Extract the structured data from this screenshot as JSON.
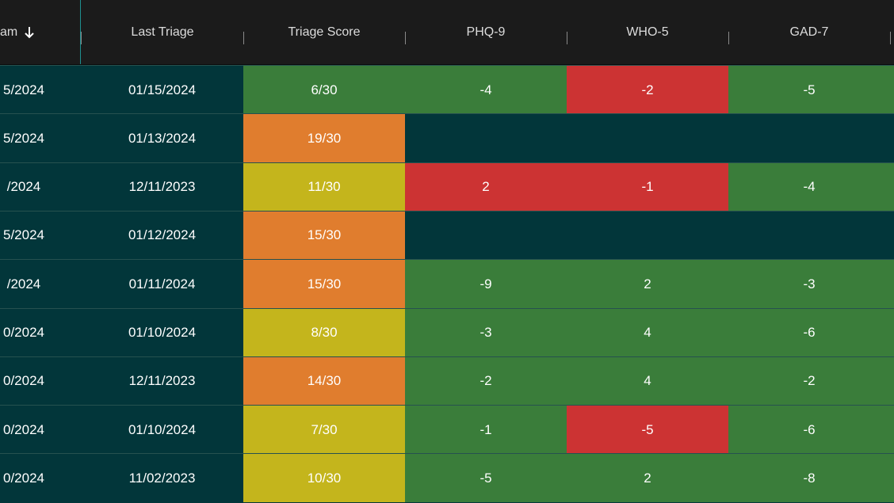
{
  "header": {
    "columns": [
      {
        "label": "am",
        "sorted": "desc"
      },
      {
        "label": "Last Triage"
      },
      {
        "label": "Triage Score"
      },
      {
        "label": "PHQ-9"
      },
      {
        "label": "WHO-5"
      },
      {
        "label": "GAD-7"
      }
    ]
  },
  "colors": {
    "header_bg": "#1b1b1b",
    "row_bg": "#02363a",
    "good": "#3a7d3a",
    "bad": "#cc3333",
    "high_score": "#e07d2e",
    "mid_score": "#c4b51c"
  },
  "rows": [
    {
      "date_partial": "5/2024",
      "last_triage": "01/15/2024",
      "triage_score": "6/30",
      "score_level": "low",
      "phq9": "-4",
      "phq9_status": "good",
      "who5": "-2",
      "who5_status": "bad",
      "gad7": "-5",
      "gad7_status": "good"
    },
    {
      "date_partial": "5/2024",
      "last_triage": "01/13/2024",
      "triage_score": "19/30",
      "score_level": "high",
      "phq9": "",
      "phq9_status": "none",
      "who5": "",
      "who5_status": "none",
      "gad7": "",
      "gad7_status": "none"
    },
    {
      "date_partial": "/2024",
      "last_triage": "12/11/2023",
      "triage_score": "11/30",
      "score_level": "mid",
      "phq9": "2",
      "phq9_status": "bad",
      "who5": "-1",
      "who5_status": "bad",
      "gad7": "-4",
      "gad7_status": "good"
    },
    {
      "date_partial": "5/2024",
      "last_triage": "01/12/2024",
      "triage_score": "15/30",
      "score_level": "high",
      "phq9": "",
      "phq9_status": "none",
      "who5": "",
      "who5_status": "none",
      "gad7": "",
      "gad7_status": "none"
    },
    {
      "date_partial": "/2024",
      "last_triage": "01/11/2024",
      "triage_score": "15/30",
      "score_level": "high",
      "phq9": "-9",
      "phq9_status": "good",
      "who5": "2",
      "who5_status": "good",
      "gad7": "-3",
      "gad7_status": "good"
    },
    {
      "date_partial": "0/2024",
      "last_triage": "01/10/2024",
      "triage_score": "8/30",
      "score_level": "mid",
      "phq9": "-3",
      "phq9_status": "good",
      "who5": "4",
      "who5_status": "good",
      "gad7": "-6",
      "gad7_status": "good"
    },
    {
      "date_partial": "0/2024",
      "last_triage": "12/11/2023",
      "triage_score": "14/30",
      "score_level": "high",
      "phq9": "-2",
      "phq9_status": "good",
      "who5": "4",
      "who5_status": "good",
      "gad7": "-2",
      "gad7_status": "good"
    },
    {
      "date_partial": "0/2024",
      "last_triage": "01/10/2024",
      "triage_score": "7/30",
      "score_level": "mid",
      "phq9": "-1",
      "phq9_status": "good",
      "who5": "-5",
      "who5_status": "bad",
      "gad7": "-6",
      "gad7_status": "good"
    },
    {
      "date_partial": "0/2024",
      "last_triage": "11/02/2023",
      "triage_score": "10/30",
      "score_level": "mid",
      "phq9": "-5",
      "phq9_status": "good",
      "who5": "2",
      "who5_status": "good",
      "gad7": "-8",
      "gad7_status": "good"
    }
  ]
}
